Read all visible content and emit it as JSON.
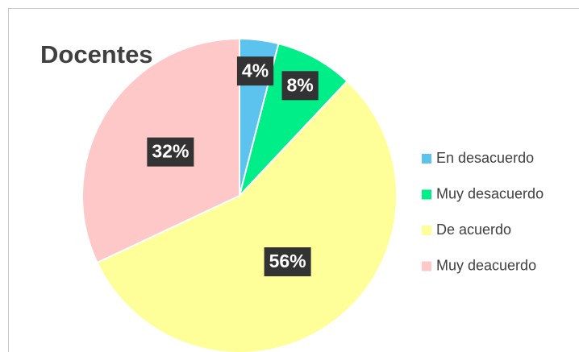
{
  "chart_data": {
    "type": "pie",
    "title": "Docentes",
    "categories": [
      "En desacuerdo",
      "Muy desacuerdo",
      "De acuerdo",
      "Muy deacuerdo"
    ],
    "values": [
      4,
      8,
      56,
      32
    ],
    "value_labels": [
      "4%",
      "8%",
      "56%",
      "32%"
    ],
    "colors": [
      "#5bc3ee",
      "#00ee88",
      "#ffff99",
      "#ffc8c8"
    ],
    "legend": "right"
  }
}
